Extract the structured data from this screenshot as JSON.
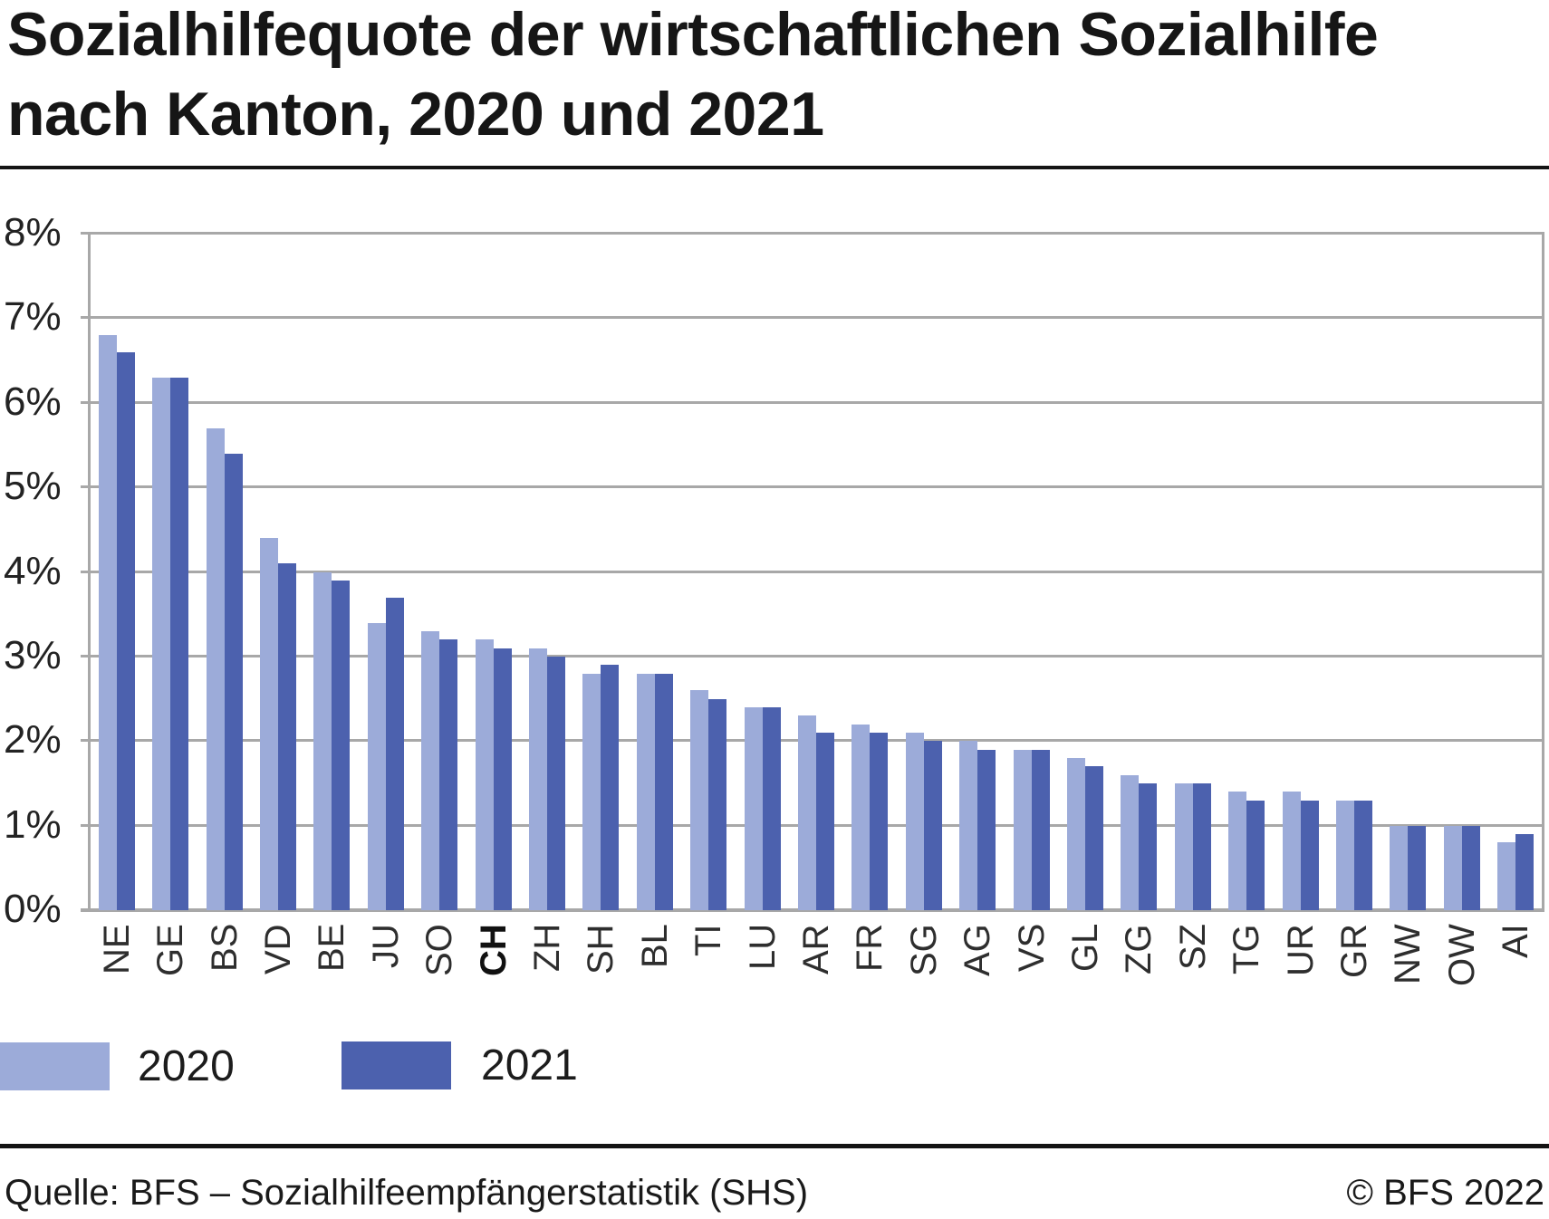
{
  "title": {
    "line1": "Sozialhilfequote der wirtschaftlichen Sozialhilfe",
    "line2": "nach Kanton, 2020 und 2021"
  },
  "chart_data": {
    "type": "bar",
    "title": "Sozialhilfequote der wirtschaftlichen Sozialhilfe nach Kanton, 2020 und 2021",
    "categories": [
      "NE",
      "GE",
      "BS",
      "VD",
      "BE",
      "JU",
      "SO",
      "CH",
      "ZH",
      "SH",
      "BL",
      "TI",
      "LU",
      "AR",
      "FR",
      "SG",
      "AG",
      "VS",
      "GL",
      "ZG",
      "SZ",
      "TG",
      "UR",
      "GR",
      "NW",
      "OW",
      "AI"
    ],
    "emphasized_category": "CH",
    "series": [
      {
        "name": "2020",
        "color": "#9CABD9",
        "values": [
          6.8,
          6.3,
          5.7,
          4.4,
          4.0,
          3.4,
          3.3,
          3.2,
          3.1,
          2.8,
          2.8,
          2.6,
          2.4,
          2.3,
          2.2,
          2.1,
          2.0,
          1.9,
          1.8,
          1.6,
          1.5,
          1.4,
          1.4,
          1.3,
          1.0,
          1.0,
          0.8
        ]
      },
      {
        "name": "2021",
        "color": "#4C61AE",
        "values": [
          6.6,
          6.3,
          5.4,
          4.1,
          3.9,
          3.7,
          3.2,
          3.1,
          3.0,
          2.9,
          2.8,
          2.5,
          2.4,
          2.1,
          2.1,
          2.0,
          1.9,
          1.9,
          1.7,
          1.5,
          1.5,
          1.3,
          1.3,
          1.3,
          1.0,
          1.0,
          0.9
        ]
      }
    ],
    "y_ticks": [
      "0%",
      "1%",
      "2%",
      "3%",
      "4%",
      "5%",
      "6%",
      "7%",
      "8%"
    ],
    "ylim": [
      0,
      8
    ],
    "unit": "%",
    "grid": true,
    "legend_position": "below-chart"
  },
  "legend": {
    "items": [
      {
        "label": "2020",
        "color": "#9CABD9"
      },
      {
        "label": "2021",
        "color": "#4C61AE"
      }
    ]
  },
  "footer": {
    "source": "Quelle: BFS – Sozialhilfeempfängerstatistik (SHS)",
    "copyright": "© BFS 2022"
  },
  "colors": {
    "grid": "#A8A8A8",
    "rule": "#141414",
    "text": "#1A1A1A"
  }
}
